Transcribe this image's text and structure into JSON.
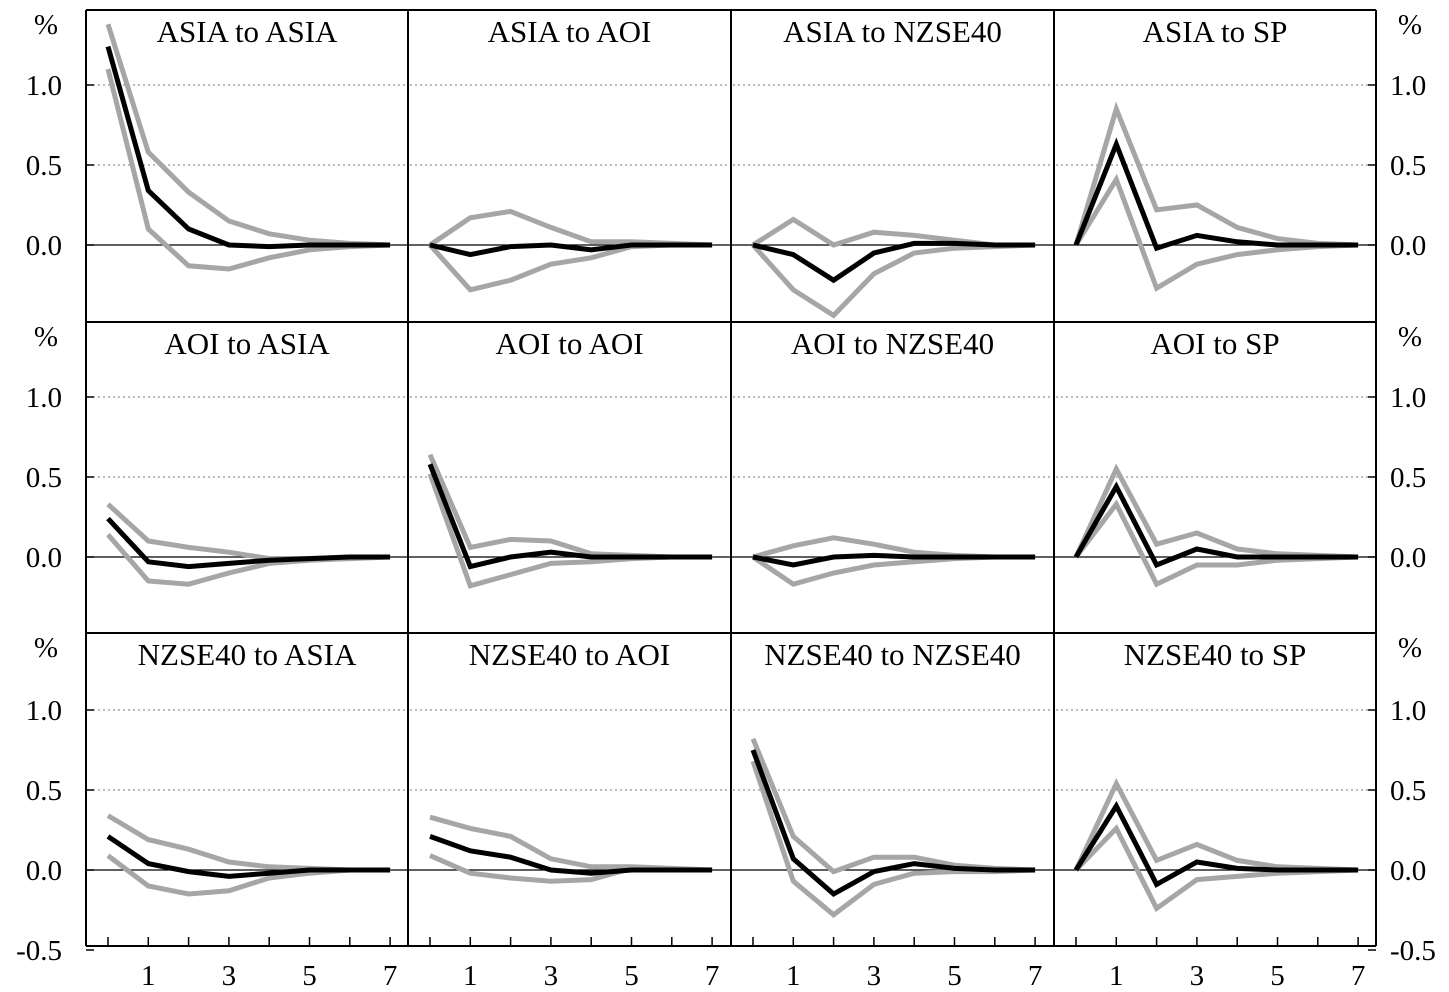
{
  "chart_data": {
    "type": "line",
    "layout": "3x4 grid of impulse-response panels",
    "y_unit_label": "%",
    "ylim": [
      -0.5,
      1.5
    ],
    "y_ticks": [
      -0.5,
      0.0,
      0.5,
      1.0
    ],
    "y_tick_labels": [
      "-0.5",
      "0.0",
      "0.5",
      "1.0"
    ],
    "x_ticks": [
      1,
      3,
      5,
      7
    ],
    "x_tick_labels": [
      "1",
      "3",
      "5",
      "7"
    ],
    "xlim": [
      0,
      7
    ],
    "grid": "horizontal dotted at 0.5 and 1.0; solid zero line",
    "colors": {
      "estimate": "#000000",
      "bands": "#a6a6a6"
    },
    "panels": [
      {
        "title": "ASIA to ASIA",
        "series": [
          {
            "role": "upper",
            "x": [
              0,
              1,
              2,
              3,
              4,
              5,
              6,
              7
            ],
            "y": [
              1.38,
              0.58,
              0.33,
              0.15,
              0.07,
              0.03,
              0.01,
              0.0
            ]
          },
          {
            "role": "estimate",
            "x": [
              0,
              1,
              2,
              3,
              4,
              5,
              6,
              7
            ],
            "y": [
              1.24,
              0.34,
              0.1,
              0.0,
              -0.01,
              0.0,
              0.0,
              0.0
            ]
          },
          {
            "role": "lower",
            "x": [
              0,
              1,
              2,
              3,
              4,
              5,
              6,
              7
            ],
            "y": [
              1.1,
              0.1,
              -0.13,
              -0.15,
              -0.08,
              -0.03,
              -0.01,
              0.0
            ]
          }
        ]
      },
      {
        "title": "ASIA to AOI",
        "series": [
          {
            "role": "upper",
            "x": [
              0,
              1,
              2,
              3,
              4,
              5,
              6,
              7
            ],
            "y": [
              0.0,
              0.17,
              0.21,
              0.11,
              0.02,
              0.02,
              0.01,
              0.0
            ]
          },
          {
            "role": "estimate",
            "x": [
              0,
              1,
              2,
              3,
              4,
              5,
              6,
              7
            ],
            "y": [
              0.0,
              -0.06,
              -0.01,
              0.0,
              -0.03,
              0.0,
              0.0,
              0.0
            ]
          },
          {
            "role": "lower",
            "x": [
              0,
              1,
              2,
              3,
              4,
              5,
              6,
              7
            ],
            "y": [
              0.0,
              -0.28,
              -0.22,
              -0.12,
              -0.08,
              -0.01,
              0.0,
              0.0
            ]
          }
        ]
      },
      {
        "title": "ASIA to NZSE40",
        "series": [
          {
            "role": "upper",
            "x": [
              0,
              1,
              2,
              3,
              4,
              5,
              6,
              7
            ],
            "y": [
              0.0,
              0.16,
              0.0,
              0.08,
              0.06,
              0.03,
              0.0,
              0.0
            ]
          },
          {
            "role": "estimate",
            "x": [
              0,
              1,
              2,
              3,
              4,
              5,
              6,
              7
            ],
            "y": [
              0.0,
              -0.06,
              -0.22,
              -0.05,
              0.01,
              0.01,
              0.0,
              0.0
            ]
          },
          {
            "role": "lower",
            "x": [
              0,
              1,
              2,
              3,
              4,
              5,
              6,
              7
            ],
            "y": [
              0.0,
              -0.28,
              -0.44,
              -0.18,
              -0.05,
              -0.02,
              -0.01,
              0.0
            ]
          }
        ]
      },
      {
        "title": "ASIA to SP",
        "series": [
          {
            "role": "upper",
            "x": [
              0,
              1,
              2,
              3,
              4,
              5,
              6,
              7
            ],
            "y": [
              0.0,
              0.85,
              0.22,
              0.25,
              0.11,
              0.04,
              0.01,
              0.0
            ]
          },
          {
            "role": "estimate",
            "x": [
              0,
              1,
              2,
              3,
              4,
              5,
              6,
              7
            ],
            "y": [
              0.0,
              0.63,
              -0.02,
              0.06,
              0.02,
              0.0,
              0.0,
              0.0
            ]
          },
          {
            "role": "lower",
            "x": [
              0,
              1,
              2,
              3,
              4,
              5,
              6,
              7
            ],
            "y": [
              0.0,
              0.41,
              -0.27,
              -0.12,
              -0.06,
              -0.03,
              -0.01,
              0.0
            ]
          }
        ]
      },
      {
        "title": "AOI to ASIA",
        "series": [
          {
            "role": "upper",
            "x": [
              0,
              1,
              2,
              3,
              4,
              5,
              6,
              7
            ],
            "y": [
              0.33,
              0.1,
              0.06,
              0.03,
              -0.01,
              -0.01,
              0.0,
              0.0
            ]
          },
          {
            "role": "estimate",
            "x": [
              0,
              1,
              2,
              3,
              4,
              5,
              6,
              7
            ],
            "y": [
              0.24,
              -0.03,
              -0.06,
              -0.04,
              -0.02,
              -0.01,
              0.0,
              0.0
            ]
          },
          {
            "role": "lower",
            "x": [
              0,
              1,
              2,
              3,
              4,
              5,
              6,
              7
            ],
            "y": [
              0.14,
              -0.15,
              -0.17,
              -0.1,
              -0.04,
              -0.02,
              -0.01,
              0.0
            ]
          }
        ]
      },
      {
        "title": "AOI to AOI",
        "series": [
          {
            "role": "upper",
            "x": [
              0,
              1,
              2,
              3,
              4,
              5,
              6,
              7
            ],
            "y": [
              0.64,
              0.06,
              0.11,
              0.1,
              0.02,
              0.01,
              0.0,
              0.0
            ]
          },
          {
            "role": "estimate",
            "x": [
              0,
              1,
              2,
              3,
              4,
              5,
              6,
              7
            ],
            "y": [
              0.58,
              -0.06,
              0.0,
              0.03,
              0.0,
              0.0,
              0.0,
              0.0
            ]
          },
          {
            "role": "lower",
            "x": [
              0,
              1,
              2,
              3,
              4,
              5,
              6,
              7
            ],
            "y": [
              0.52,
              -0.18,
              -0.11,
              -0.04,
              -0.03,
              -0.01,
              0.0,
              0.0
            ]
          }
        ]
      },
      {
        "title": "AOI to NZSE40",
        "series": [
          {
            "role": "upper",
            "x": [
              0,
              1,
              2,
              3,
              4,
              5,
              6,
              7
            ],
            "y": [
              0.0,
              0.07,
              0.12,
              0.08,
              0.03,
              0.01,
              0.0,
              0.0
            ]
          },
          {
            "role": "estimate",
            "x": [
              0,
              1,
              2,
              3,
              4,
              5,
              6,
              7
            ],
            "y": [
              0.0,
              -0.05,
              0.0,
              0.01,
              0.0,
              0.0,
              0.0,
              0.0
            ]
          },
          {
            "role": "lower",
            "x": [
              0,
              1,
              2,
              3,
              4,
              5,
              6,
              7
            ],
            "y": [
              0.0,
              -0.17,
              -0.1,
              -0.05,
              -0.03,
              -0.01,
              0.0,
              0.0
            ]
          }
        ]
      },
      {
        "title": "AOI to SP",
        "series": [
          {
            "role": "upper",
            "x": [
              0,
              1,
              2,
              3,
              4,
              5,
              6,
              7
            ],
            "y": [
              0.0,
              0.55,
              0.08,
              0.15,
              0.05,
              0.02,
              0.01,
              0.0
            ]
          },
          {
            "role": "estimate",
            "x": [
              0,
              1,
              2,
              3,
              4,
              5,
              6,
              7
            ],
            "y": [
              0.0,
              0.44,
              -0.05,
              0.05,
              0.0,
              0.0,
              0.0,
              0.0
            ]
          },
          {
            "role": "lower",
            "x": [
              0,
              1,
              2,
              3,
              4,
              5,
              6,
              7
            ],
            "y": [
              0.0,
              0.33,
              -0.17,
              -0.05,
              -0.05,
              -0.02,
              -0.01,
              0.0
            ]
          }
        ]
      },
      {
        "title": "NZSE40 to ASIA",
        "series": [
          {
            "role": "upper",
            "x": [
              0,
              1,
              2,
              3,
              4,
              5,
              6,
              7
            ],
            "y": [
              0.34,
              0.19,
              0.13,
              0.05,
              0.02,
              0.01,
              0.0,
              0.0
            ]
          },
          {
            "role": "estimate",
            "x": [
              0,
              1,
              2,
              3,
              4,
              5,
              6,
              7
            ],
            "y": [
              0.21,
              0.04,
              -0.01,
              -0.04,
              -0.02,
              0.0,
              0.0,
              0.0
            ]
          },
          {
            "role": "lower",
            "x": [
              0,
              1,
              2,
              3,
              4,
              5,
              6,
              7
            ],
            "y": [
              0.09,
              -0.1,
              -0.15,
              -0.13,
              -0.05,
              -0.02,
              0.0,
              0.0
            ]
          }
        ]
      },
      {
        "title": "NZSE40 to AOI",
        "series": [
          {
            "role": "upper",
            "x": [
              0,
              1,
              2,
              3,
              4,
              5,
              6,
              7
            ],
            "y": [
              0.33,
              0.26,
              0.21,
              0.07,
              0.02,
              0.02,
              0.01,
              0.0
            ]
          },
          {
            "role": "estimate",
            "x": [
              0,
              1,
              2,
              3,
              4,
              5,
              6,
              7
            ],
            "y": [
              0.21,
              0.12,
              0.08,
              0.0,
              -0.02,
              0.0,
              0.0,
              0.0
            ]
          },
          {
            "role": "lower",
            "x": [
              0,
              1,
              2,
              3,
              4,
              5,
              6,
              7
            ],
            "y": [
              0.09,
              -0.02,
              -0.05,
              -0.07,
              -0.06,
              0.01,
              0.0,
              0.0
            ]
          }
        ]
      },
      {
        "title": "NZSE40 to NZSE40",
        "series": [
          {
            "role": "upper",
            "x": [
              0,
              1,
              2,
              3,
              4,
              5,
              6,
              7
            ],
            "y": [
              0.82,
              0.21,
              -0.01,
              0.08,
              0.08,
              0.03,
              0.01,
              0.0
            ]
          },
          {
            "role": "estimate",
            "x": [
              0,
              1,
              2,
              3,
              4,
              5,
              6,
              7
            ],
            "y": [
              0.75,
              0.07,
              -0.15,
              -0.01,
              0.04,
              0.01,
              0.0,
              0.0
            ]
          },
          {
            "role": "lower",
            "x": [
              0,
              1,
              2,
              3,
              4,
              5,
              6,
              7
            ],
            "y": [
              0.68,
              -0.07,
              -0.28,
              -0.09,
              -0.02,
              -0.01,
              -0.01,
              0.0
            ]
          }
        ]
      },
      {
        "title": "NZSE40 to SP",
        "series": [
          {
            "role": "upper",
            "x": [
              0,
              1,
              2,
              3,
              4,
              5,
              6,
              7
            ],
            "y": [
              0.0,
              0.54,
              0.06,
              0.16,
              0.06,
              0.02,
              0.01,
              0.0
            ]
          },
          {
            "role": "estimate",
            "x": [
              0,
              1,
              2,
              3,
              4,
              5,
              6,
              7
            ],
            "y": [
              0.0,
              0.4,
              -0.09,
              0.05,
              0.01,
              0.0,
              0.0,
              0.0
            ]
          },
          {
            "role": "lower",
            "x": [
              0,
              1,
              2,
              3,
              4,
              5,
              6,
              7
            ],
            "y": [
              0.0,
              0.26,
              -0.24,
              -0.06,
              -0.04,
              -0.02,
              -0.01,
              0.0
            ]
          }
        ]
      }
    ]
  }
}
